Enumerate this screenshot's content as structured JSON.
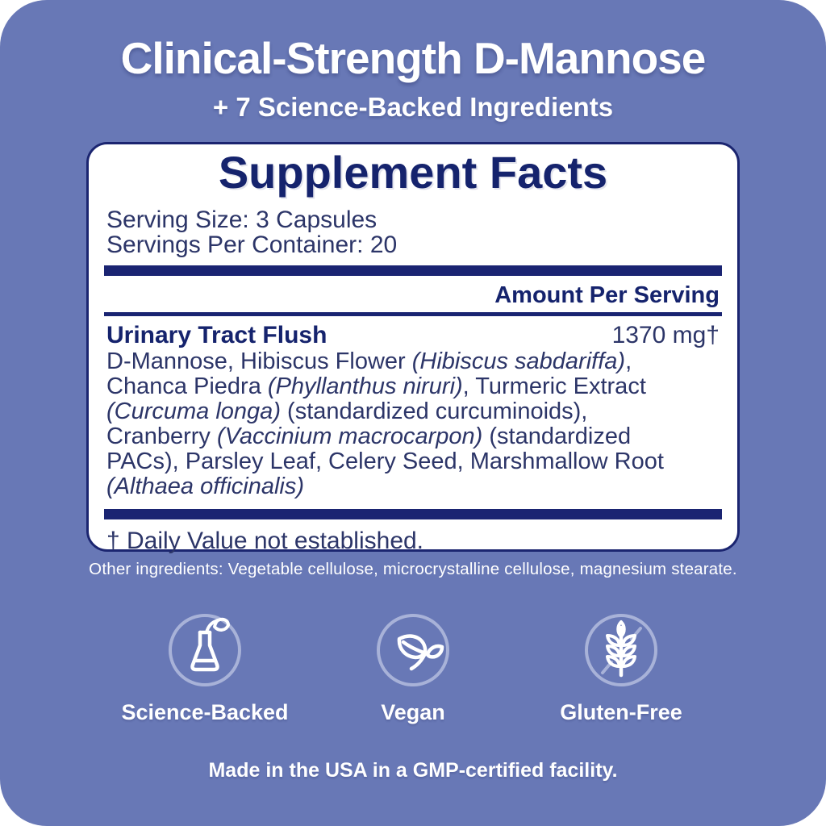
{
  "colors": {
    "card_background": "#6878b6",
    "navy": "#1a2472",
    "heading_navy": "#15236d",
    "body_navy": "#2c3568",
    "white": "#ffffff",
    "badge_circle_stroke": "#a8b2d8"
  },
  "header": {
    "title": "Clinical-Strength D-Mannose",
    "subtitle": "+ 7 Science-Backed Ingredients"
  },
  "supplement_facts": {
    "heading": "Supplement Facts",
    "serving_size": "Serving Size: 3 Capsules",
    "servings_per_container": "Servings Per Container: 20",
    "amount_per_serving": "Amount Per Serving",
    "blend_name": "Urinary Tract Flush",
    "blend_amount": "1370 mg†",
    "ingredients_segments": [
      {
        "text": "D-Mannose, Hibiscus Flower ",
        "italic": false
      },
      {
        "text": "(Hibiscus sabdariffa)",
        "italic": true
      },
      {
        "text": ",\nChanca Piedra ",
        "italic": false
      },
      {
        "text": "(Phyllanthus niruri)",
        "italic": true
      },
      {
        "text": ", Turmeric Extract\n",
        "italic": false
      },
      {
        "text": "(Curcuma longa)",
        "italic": true
      },
      {
        "text": " (standardized curcuminoids),\nCranberry ",
        "italic": false
      },
      {
        "text": "(Vaccinium macrocarpon)",
        "italic": true
      },
      {
        "text": " (standardized\nPACs), Parsley Leaf, Celery Seed, Marshmallow Root\n",
        "italic": false
      },
      {
        "text": "(Althaea officinalis)",
        "italic": true
      }
    ],
    "footnote": "† Daily Value not established.",
    "other_ingredients": "Other ingredients: Vegetable cellulose, microcrystalline cellulose, magnesium stearate."
  },
  "badges": [
    {
      "icon": "flask-sprout-icon",
      "label": "Science-Backed"
    },
    {
      "icon": "leaves-icon",
      "label": "Vegan"
    },
    {
      "icon": "wheat-crossed-icon",
      "label": "Gluten-Free"
    }
  ],
  "footer": {
    "made_in": "Made in the USA in a GMP-certified facility."
  }
}
